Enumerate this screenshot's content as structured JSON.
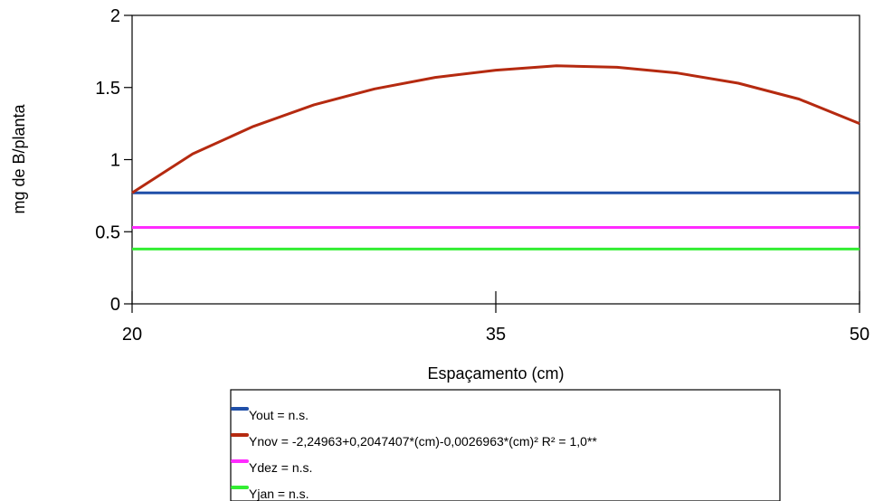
{
  "chart_data": {
    "type": "line",
    "title": "",
    "xlabel": "Espaçamento (cm)",
    "ylabel": "mg de B/planta",
    "xlim": [
      20,
      50
    ],
    "ylim": [
      0,
      2
    ],
    "x_ticks": [
      "20",
      "35",
      "50"
    ],
    "y_ticks": [
      "0",
      "0.5",
      "1",
      "1.5",
      "2"
    ],
    "grid": false,
    "legend_position": "bottom",
    "x": [
      20,
      22.5,
      25,
      27.5,
      30,
      32.5,
      35,
      37.5,
      40,
      42.5,
      45,
      47.5,
      50
    ],
    "series": [
      {
        "name": "Yout = n.s.",
        "color": "#1f4fa8",
        "values": [
          0.77,
          0.77,
          0.77,
          0.77,
          0.77,
          0.77,
          0.77,
          0.77,
          0.77,
          0.77,
          0.77,
          0.77,
          0.77
        ]
      },
      {
        "name": "Ynov = -2,24963+0,2047407*(cm)-0,0026963*(cm)²  R² = 1,0**",
        "color": "#b52a10",
        "values": [
          0.77,
          1.04,
          1.23,
          1.38,
          1.49,
          1.57,
          1.62,
          1.65,
          1.64,
          1.6,
          1.53,
          1.42,
          1.25
        ]
      },
      {
        "name": "Ydez = n.s.",
        "color": "#ff2bff",
        "values": [
          0.53,
          0.53,
          0.53,
          0.53,
          0.53,
          0.53,
          0.53,
          0.53,
          0.53,
          0.53,
          0.53,
          0.53,
          0.53
        ]
      },
      {
        "name": "Yjan = n.s.",
        "color": "#33ee33",
        "values": [
          0.38,
          0.38,
          0.38,
          0.38,
          0.38,
          0.38,
          0.38,
          0.38,
          0.38,
          0.38,
          0.38,
          0.38,
          0.38
        ]
      }
    ]
  }
}
